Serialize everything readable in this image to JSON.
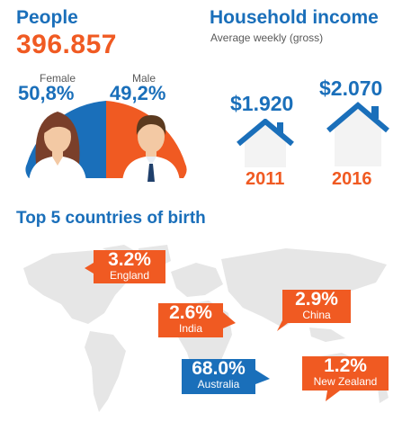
{
  "people": {
    "title": "People",
    "count": "396.857",
    "female_label": "Female",
    "male_label": "Male",
    "female_pct": "50,8%",
    "male_pct": "49,2%"
  },
  "household_income": {
    "title": "Household income",
    "subtitle": "Average weekly (gross)",
    "values": [
      {
        "amount": "$1.920",
        "year": "2011"
      },
      {
        "amount": "$2.070",
        "year": "2016"
      }
    ]
  },
  "countries": {
    "title": "Top 5 countries of birth",
    "items": [
      {
        "pct": "3.2%",
        "name": "England"
      },
      {
        "pct": "2.9%",
        "name": "China"
      },
      {
        "pct": "2.6%",
        "name": "India"
      },
      {
        "pct": "68.0%",
        "name": "Australia"
      },
      {
        "pct": "1.2%",
        "name": "New Zealand"
      }
    ]
  },
  "colors": {
    "blue": "#1a6fba",
    "orange": "#f05a22",
    "map_gray": "#e6e6e6"
  }
}
